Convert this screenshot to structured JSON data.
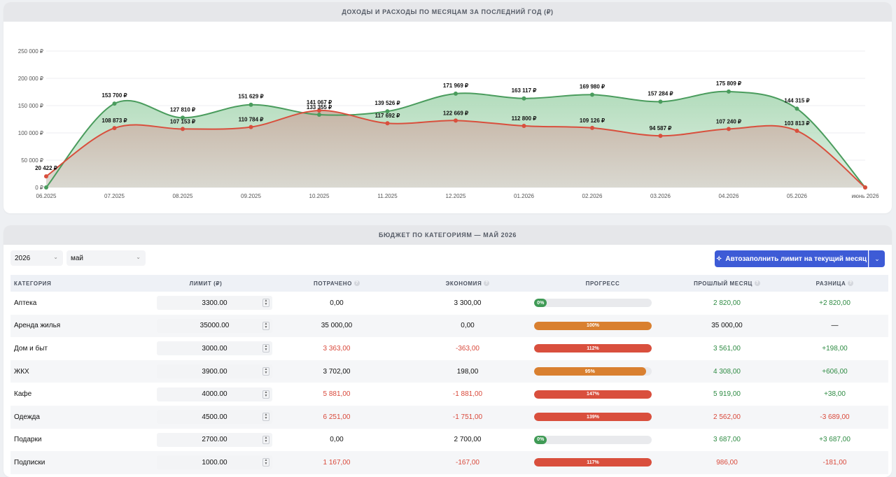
{
  "chart": {
    "title": "ДОХОДЫ И РАСХОДЫ ПО МЕСЯЦАМ ЗА ПОСЛЕДНИЙ ГОД (₽)",
    "colors": {
      "income": "#4a9c5d",
      "expense": "#d94f3d"
    },
    "chart_data": {
      "type": "area",
      "title": "ДОХОДЫ И РАСХОДЫ ПО МЕСЯЦАМ ЗА ПОСЛЕДНИЙ ГОД (₽)",
      "categories": [
        "06.2025",
        "07.2025",
        "08.2025",
        "09.2025",
        "10.2025",
        "11.2025",
        "12.2025",
        "01.2026",
        "02.2026",
        "03.2026",
        "04.2026",
        "05.2026",
        "июнь 2026"
      ],
      "y_ticks": [
        "0 ₽",
        "50 000 ₽",
        "100 000 ₽",
        "150 000 ₽",
        "200 000 ₽",
        "250 000 ₽"
      ],
      "ylim": [
        0,
        250000
      ],
      "grid": true,
      "series": [
        {
          "key": "income",
          "values": [
            0,
            153700,
            127810,
            151629,
            133355,
            139526,
            171969,
            163117,
            169980,
            157284,
            175809,
            144315,
            0
          ],
          "labels": [
            "",
            "153 700 ₽",
            "127 810 ₽",
            "151 629 ₽",
            "133 355 ₽",
            "139 526 ₽",
            "171 969 ₽",
            "163 117 ₽",
            "169 980 ₽",
            "157 284 ₽",
            "175 809 ₽",
            "144 315 ₽",
            ""
          ]
        },
        {
          "key": "expense",
          "values": [
            20422,
            108873,
            107153,
            110784,
            141067,
            117692,
            122669,
            112800,
            109126,
            94587,
            107240,
            103813,
            0
          ],
          "labels": [
            "20 422 ₽",
            "108 873 ₽",
            "107 153 ₽",
            "110 784 ₽",
            "141 067 ₽",
            "117 692 ₽",
            "122 669 ₽",
            "112 800 ₽",
            "109 126 ₽",
            "94 587 ₽",
            "107 240 ₽",
            "103 813 ₽",
            ""
          ]
        }
      ]
    }
  },
  "budget": {
    "title": "БЮДЖЕТ ПО КАТЕГОРИЯМ — МАЙ 2026",
    "year": "2026",
    "month": "май",
    "autofill_label": "Автозаполнить лимит на текущий месяц",
    "columns": [
      "КАТЕГОРИЯ",
      "ЛИМИТ (₽)",
      "ПОТРАЧЕНО",
      "ЭКОНОМИЯ",
      "ПРОГРЕСС",
      "ПРОШЛЫЙ МЕСЯЦ",
      "РАЗНИЦА"
    ],
    "rows": [
      {
        "category": "Аптека",
        "limit": "3300.00",
        "spent": "0,00",
        "saving": "3 300,00",
        "progress_label": "0%",
        "progress": 0,
        "prev": "2 820,00",
        "diff": "+2 820,00",
        "spent_color": "normal",
        "saving_color": "normal",
        "bar_color": "#3f9a55",
        "prev_color": "green",
        "diff_color": "green"
      },
      {
        "category": "Аренда жилья",
        "limit": "35000.00",
        "spent": "35 000,00",
        "saving": "0,00",
        "progress_label": "100%",
        "progress": 100,
        "prev": "35 000,00",
        "diff": "—",
        "spent_color": "normal",
        "saving_color": "normal",
        "bar_color": "#d98030",
        "prev_color": "normal",
        "diff_color": "normal"
      },
      {
        "category": "Дом и быт",
        "limit": "3000.00",
        "spent": "3 363,00",
        "saving": "-363,00",
        "progress_label": "112%",
        "progress": 112,
        "prev": "3 561,00",
        "diff": "+198,00",
        "spent_color": "red",
        "saving_color": "red",
        "bar_color": "#d94f3d",
        "prev_color": "green",
        "diff_color": "green"
      },
      {
        "category": "ЖКХ",
        "limit": "3900.00",
        "spent": "3 702,00",
        "saving": "198,00",
        "progress_label": "95%",
        "progress": 95,
        "prev": "4 308,00",
        "diff": "+606,00",
        "spent_color": "normal",
        "saving_color": "normal",
        "bar_color": "#d98030",
        "prev_color": "green",
        "diff_color": "green"
      },
      {
        "category": "Кафе",
        "limit": "4000.00",
        "spent": "5 881,00",
        "saving": "-1 881,00",
        "progress_label": "147%",
        "progress": 147,
        "prev": "5 919,00",
        "diff": "+38,00",
        "spent_color": "red",
        "saving_color": "red",
        "bar_color": "#d94f3d",
        "prev_color": "green",
        "diff_color": "green"
      },
      {
        "category": "Одежда",
        "limit": "4500.00",
        "spent": "6 251,00",
        "saving": "-1 751,00",
        "progress_label": "139%",
        "progress": 139,
        "prev": "2 562,00",
        "diff": "-3 689,00",
        "spent_color": "red",
        "saving_color": "red",
        "bar_color": "#d94f3d",
        "prev_color": "red",
        "diff_color": "red"
      },
      {
        "category": "Подарки",
        "limit": "2700.00",
        "spent": "0,00",
        "saving": "2 700,00",
        "progress_label": "0%",
        "progress": 0,
        "prev": "3 687,00",
        "diff": "+3 687,00",
        "spent_color": "normal",
        "saving_color": "normal",
        "bar_color": "#3f9a55",
        "prev_color": "green",
        "diff_color": "green"
      },
      {
        "category": "Подписки",
        "limit": "1000.00",
        "spent": "1 167,00",
        "saving": "-167,00",
        "progress_label": "117%",
        "progress": 117,
        "prev": "986,00",
        "diff": "-181,00",
        "spent_color": "red",
        "saving_color": "red",
        "bar_color": "#d94f3d",
        "prev_color": "red",
        "diff_color": "red"
      }
    ]
  }
}
